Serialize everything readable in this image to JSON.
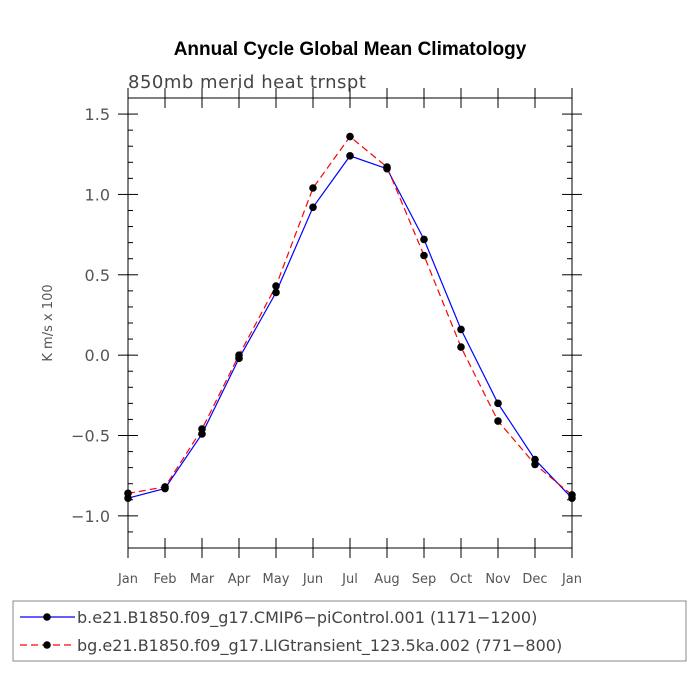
{
  "chart_data": {
    "type": "line",
    "title": "Annual Cycle Global Mean Climatology",
    "subtitle": "850mb merid heat trnspt",
    "xlabel": "",
    "ylabel": "K m/s x 100",
    "categories": [
      "Jan",
      "Feb",
      "Mar",
      "Apr",
      "May",
      "Jun",
      "Jul",
      "Aug",
      "Sep",
      "Oct",
      "Nov",
      "Dec",
      "Jan"
    ],
    "ylim": [
      -1.2,
      1.6
    ],
    "yticks": [
      -1.0,
      -0.5,
      0.0,
      0.5,
      1.0,
      1.5
    ],
    "ytick_labels": [
      "−1.0",
      "−0.5",
      "0.0",
      "0.5",
      "1.0",
      "1.5"
    ],
    "grid": false,
    "legend_position": "bottom",
    "series": [
      {
        "name": "b.e21.B1850.f09_g17.CMIP6−piControl.001 (1171−1200)",
        "color": "#0000ff",
        "dash": "solid",
        "values": [
          -0.89,
          -0.83,
          -0.49,
          -0.02,
          0.39,
          0.92,
          1.24,
          1.16,
          0.72,
          0.16,
          -0.3,
          -0.65,
          -0.89
        ]
      },
      {
        "name": "bg.e21.B1850.f09_g17.LIGtransient_123.5ka.002 (771−800)",
        "color": "#ff0000",
        "dash": "dashed",
        "values": [
          -0.86,
          -0.82,
          -0.46,
          0.0,
          0.43,
          1.04,
          1.36,
          1.17,
          0.62,
          0.05,
          -0.41,
          -0.68,
          -0.87
        ]
      }
    ]
  }
}
